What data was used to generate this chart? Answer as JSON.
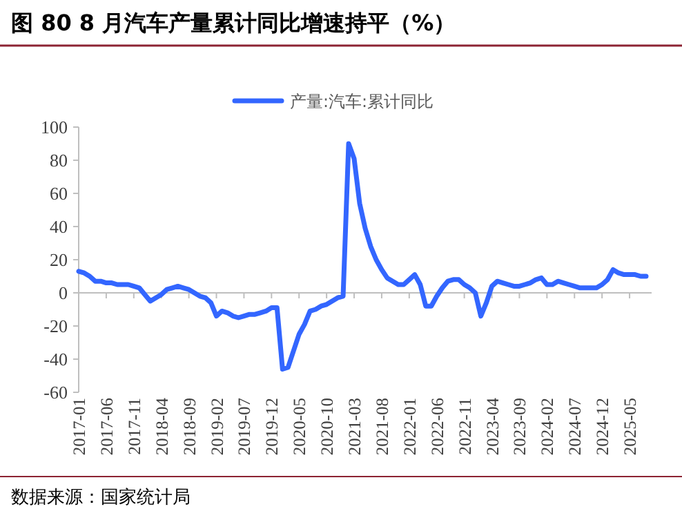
{
  "chart_data": {
    "type": "line",
    "title": "图 80 8 月汽车产量累计同比增速持平（%）",
    "categories": [
      "2017-01",
      null,
      null,
      null,
      null,
      "2017-06",
      null,
      null,
      null,
      null,
      "2017-11",
      null,
      null,
      null,
      null,
      "2018-04",
      null,
      null,
      null,
      null,
      "2018-09",
      null,
      null,
      null,
      null,
      "2019-02",
      null,
      null,
      null,
      null,
      "2019-07",
      null,
      null,
      null,
      null,
      "2019-12",
      null,
      null,
      null,
      null,
      "2020-05",
      null,
      null,
      null,
      null,
      "2020-10",
      null,
      null,
      null,
      null,
      "2021-03",
      null,
      null,
      null,
      null,
      "2021-08",
      null,
      null,
      null,
      null,
      "2022-01",
      null,
      null,
      null,
      null,
      "2022-06",
      null,
      null,
      null,
      null,
      "2022-11",
      null,
      null,
      null,
      null,
      "2023-04",
      null,
      null,
      null,
      null,
      "2023-09",
      null,
      null,
      null,
      null,
      "2024-02",
      null,
      null,
      null,
      null,
      "2024-07",
      null,
      null,
      null,
      null,
      "2024-12",
      null,
      null,
      null,
      null,
      "2025-05",
      null,
      null,
      null
    ],
    "series": [
      {
        "name": "产量:汽车:累计同比",
        "color": "#3366ff",
        "values": [
          13,
          12,
          10,
          7,
          7,
          6,
          6,
          5,
          5,
          5,
          4,
          3,
          -1,
          -5,
          -3,
          -1,
          2,
          3,
          4,
          3,
          2,
          0,
          -2,
          -3,
          -6,
          -14,
          -11,
          -12,
          -14,
          -15,
          -14,
          -13,
          -13,
          -12,
          -11,
          -9,
          -9,
          -46,
          -45,
          -35,
          -25,
          -19,
          -11,
          -10,
          -8,
          -7,
          -5,
          -3,
          -2,
          90,
          81,
          54,
          39,
          28,
          20,
          14,
          9,
          7,
          5,
          5,
          8,
          11,
          5,
          -8,
          -8,
          -2,
          3,
          7,
          8,
          8,
          5,
          3,
          0,
          -14,
          -6,
          4,
          7,
          6,
          5,
          4,
          4,
          5,
          6,
          8,
          9,
          5,
          5,
          7,
          6,
          5,
          4,
          3,
          3,
          3,
          3,
          5,
          8,
          14,
          12,
          11,
          11,
          11,
          10,
          10
        ]
      }
    ],
    "ylim": [
      -60,
      100
    ],
    "yticks": [
      -60,
      -40,
      -20,
      0,
      20,
      40,
      60,
      80,
      100
    ],
    "legend": "top",
    "annotations": [
      "数据来源：国家统计局"
    ]
  }
}
